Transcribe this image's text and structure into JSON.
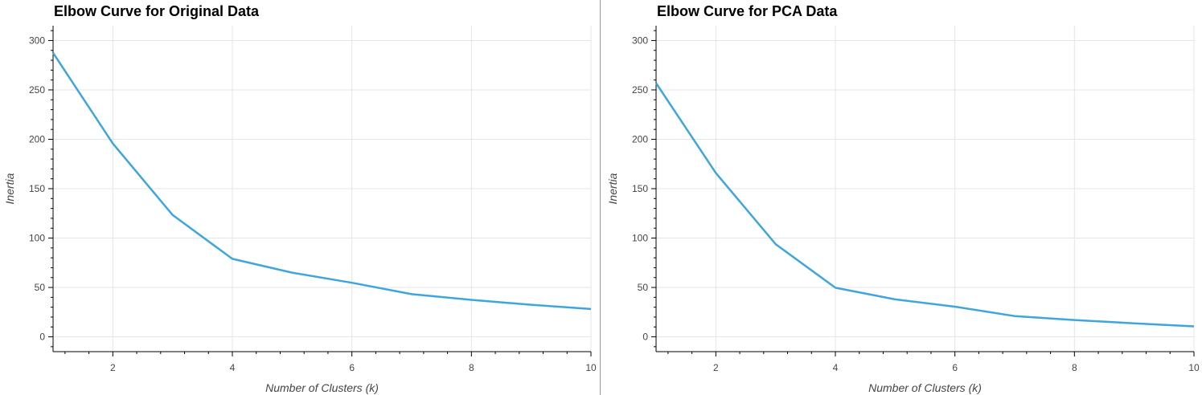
{
  "chart_data": [
    {
      "type": "line",
      "title": "Elbow Curve for Original Data",
      "xlabel": "Number of Clusters (k)",
      "ylabel": "Inertia",
      "xlim": [
        1,
        10
      ],
      "ylim": [
        -15,
        315
      ],
      "xticks": [
        2,
        4,
        6,
        8,
        10
      ],
      "yticks": [
        0,
        50,
        100,
        150,
        200,
        250,
        300
      ],
      "grid": true,
      "color": "#3ea6dc",
      "x": [
        1,
        2,
        3,
        4,
        5,
        6,
        7,
        8,
        9,
        10
      ],
      "series": [
        {
          "values": [
            287.5,
            195.8,
            123.3,
            79.0,
            65.0,
            54.7,
            43.2,
            37.4,
            32.5,
            28.2
          ]
        }
      ]
    },
    {
      "type": "line",
      "title": "Elbow Curve for PCA Data",
      "xlabel": "Number of Clusters (k)",
      "ylabel": "Inertia",
      "xlim": [
        1,
        10
      ],
      "ylim": [
        -15,
        315
      ],
      "xticks": [
        2,
        4,
        6,
        8,
        10
      ],
      "yticks": [
        0,
        50,
        100,
        150,
        200,
        250,
        300
      ],
      "grid": true,
      "color": "#3ea6dc",
      "x": [
        1,
        2,
        3,
        4,
        5,
        6,
        7,
        8,
        9,
        10
      ],
      "series": [
        {
          "values": [
            256.9,
            165.9,
            93.8,
            49.7,
            37.9,
            30.5,
            21.0,
            17.0,
            13.7,
            10.6
          ]
        }
      ]
    }
  ]
}
